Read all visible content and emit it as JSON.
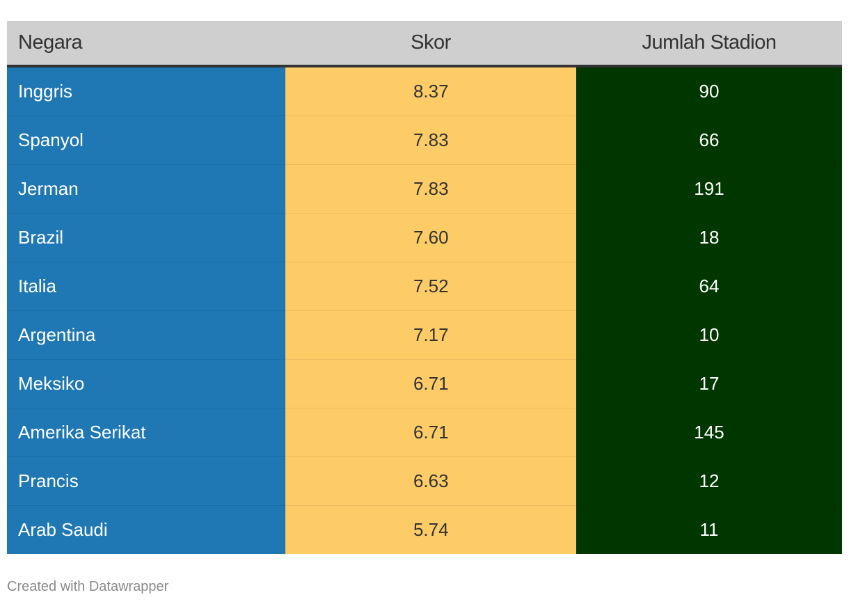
{
  "chart_data": {
    "type": "table",
    "columns": [
      "Negara",
      "Skor",
      "Jumlah Stadion"
    ],
    "rows": [
      {
        "negara": "Inggris",
        "skor": "8.37",
        "stadion": "90"
      },
      {
        "negara": "Spanyol",
        "skor": "7.83",
        "stadion": "66"
      },
      {
        "negara": "Jerman",
        "skor": "7.83",
        "stadion": "191"
      },
      {
        "negara": "Brazil",
        "skor": "7.60",
        "stadion": "18"
      },
      {
        "negara": "Italia",
        "skor": "7.52",
        "stadion": "64"
      },
      {
        "negara": "Argentina",
        "skor": "7.17",
        "stadion": "10"
      },
      {
        "negara": "Meksiko",
        "skor": "6.71",
        "stadion": "17"
      },
      {
        "negara": "Amerika Serikat",
        "skor": "6.71",
        "stadion": "145"
      },
      {
        "negara": "Prancis",
        "skor": "6.63",
        "stadion": "12"
      },
      {
        "negara": "Arab Saudi",
        "skor": "5.74",
        "stadion": "11"
      }
    ],
    "column_colors": {
      "negara": "#1f77b4",
      "skor": "#fdcc67",
      "stadion": "#003700"
    }
  },
  "footer": {
    "credit": "Created with Datawrapper"
  }
}
